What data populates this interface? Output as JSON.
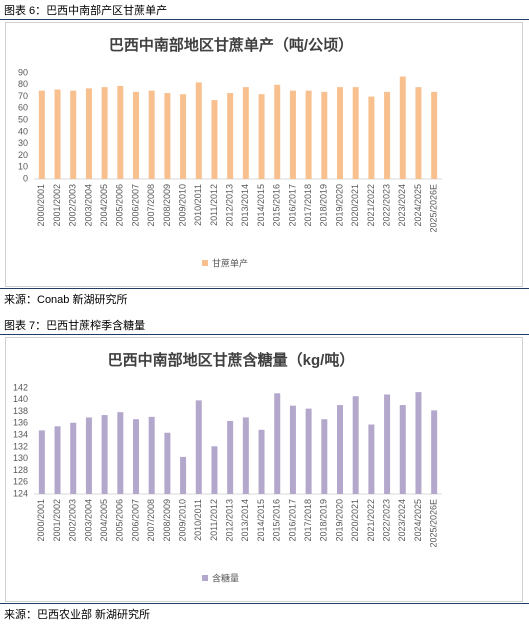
{
  "figures": [
    {
      "caption": "图表 6：巴西中南部产区甘蔗单产",
      "source": "来源：Conab 新湖研究所"
    },
    {
      "caption": "图表 7：巴西甘蔗榨季含糖量",
      "source": "来源：巴西农业部 新湖研究所"
    }
  ],
  "chart_data": [
    {
      "type": "bar",
      "title": "巴西中南部地区甘蔗单产（吨/公顷）",
      "categories": [
        "2000/2001",
        "2001/2002",
        "2002/2003",
        "2003/2004",
        "2004/2005",
        "2005/2006",
        "2006/2007",
        "2007/2008",
        "2008/2009",
        "2009/2010",
        "2010/2011",
        "2011/2012",
        "2012/2013",
        "2013/2014",
        "2014/2015",
        "2015/2016",
        "2016/2017",
        "2017/2018",
        "2018/2019",
        "2019/2020",
        "2020/2021",
        "2021/2022",
        "2022/2023",
        "2023/2024",
        "2024/2025",
        "2025/2026E"
      ],
      "series": [
        {
          "name": "甘蔗单产",
          "color": "#f8c08f",
          "values": [
            75,
            76,
            75,
            77,
            78,
            79,
            74,
            75,
            73,
            72,
            82,
            67,
            73,
            78,
            72,
            80,
            75,
            75,
            74,
            78,
            78,
            70,
            74,
            87,
            78,
            74
          ]
        }
      ],
      "ylim": [
        0,
        90
      ],
      "yticks": [
        0,
        10,
        20,
        30,
        40,
        50,
        60,
        70,
        80,
        90
      ],
      "grid": false
    },
    {
      "type": "bar",
      "title": "巴西中南部地区甘蔗含糖量（kg/吨）",
      "categories": [
        "2000/2001",
        "2001/2002",
        "2002/2003",
        "2003/2004",
        "2004/2005",
        "2005/2006",
        "2006/2007",
        "2007/2008",
        "2008/2009",
        "2009/2010",
        "2010/2011",
        "2011/2012",
        "2012/2013",
        "2013/2014",
        "2014/2015",
        "2015/2016",
        "2016/2017",
        "2017/2018",
        "2018/2019",
        "2019/2020",
        "2020/2021",
        "2021/2022",
        "2022/2023",
        "2023/2024",
        "2024/2025",
        "2025/2026E"
      ],
      "series": [
        {
          "name": "含糖量",
          "color": "#b4a7cc",
          "values": [
            134.8,
            135.5,
            136.1,
            137.0,
            137.4,
            137.9,
            136.7,
            137.1,
            134.4,
            130.3,
            139.9,
            132.1,
            136.4,
            137.0,
            134.9,
            141.1,
            139.0,
            138.5,
            136.7,
            139.1,
            140.6,
            135.8,
            140.9,
            139.1,
            141.3,
            138.2
          ]
        }
      ],
      "ylim": [
        124,
        142
      ],
      "yticks": [
        124,
        126,
        128,
        130,
        132,
        134,
        136,
        138,
        140,
        142
      ],
      "grid": false
    }
  ]
}
